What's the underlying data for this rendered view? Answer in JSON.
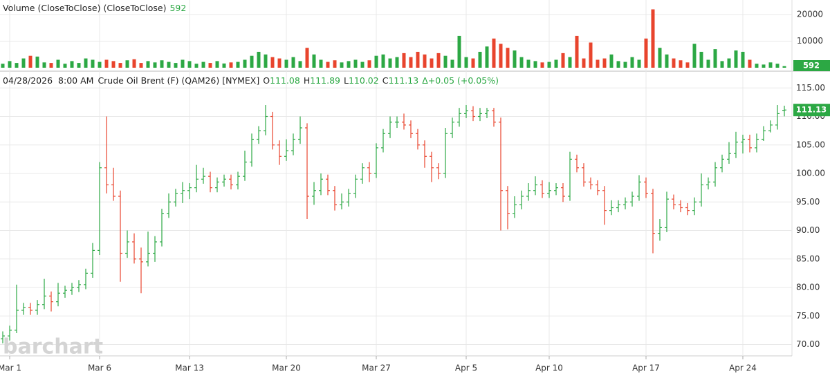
{
  "chart_data": [
    {
      "type": "bar",
      "title": "Volume (CloseToClose)  (CloseToClose)",
      "ylim": [
        0,
        25000
      ],
      "yticks": [
        10000,
        20000
      ],
      "values": [
        1500,
        2500,
        1800,
        3500,
        4500,
        4200,
        2000,
        1800,
        3000,
        1500,
        2500,
        1800,
        3500,
        3000,
        2200,
        3000,
        2500,
        1800,
        2800,
        3200,
        1800,
        2500,
        2000,
        2800,
        2200,
        1800,
        3000,
        2500,
        1500,
        2200,
        1800,
        2500,
        1600,
        2000,
        2200,
        3000,
        4500,
        6000,
        5000,
        4000,
        3500,
        3000,
        4000,
        2500,
        7500,
        5000,
        3000,
        2200,
        2800,
        2000,
        2500,
        3000,
        2200,
        2800,
        4500,
        5000,
        3500,
        4000,
        5500,
        4000,
        6000,
        5000,
        3500,
        5500,
        4500,
        3000,
        12000,
        4000,
        3500,
        6000,
        8000,
        11000,
        9000,
        7500,
        6500,
        4000,
        3000,
        2500,
        2000,
        2200,
        3000,
        5500,
        4000,
        12000,
        3500,
        9500,
        3000,
        3500,
        5000,
        2500,
        2200,
        4000,
        3000,
        11000,
        22000,
        7500,
        5000,
        3500,
        2800,
        2000,
        9000,
        6000,
        3000,
        7000,
        2500,
        3500,
        6500,
        6000,
        3000,
        1500,
        1200,
        2000,
        1500,
        592
      ]
    },
    {
      "type": "ohlc",
      "title": {
        "date": "04/28/2026",
        "time": "8:00 AM",
        "symbol": "Crude Oil Brent (F) (QAM26) [NYMEX]",
        "o": "O",
        "h": "H",
        "l": "L",
        "c": "C",
        "change": "Δ+0.05 (+0.05%)"
      },
      "watermark": "barchart",
      "up_color": "#2ca844",
      "down_color": "#e8442d",
      "ylim": [
        68,
        117.7
      ],
      "yticks": [
        {
          "value": 70,
          "label": "70.00"
        },
        {
          "value": 75,
          "label": "75.00"
        },
        {
          "value": 80,
          "label": "80.00"
        },
        {
          "value": 85,
          "label": "85.00"
        },
        {
          "value": 90,
          "label": "90.00"
        },
        {
          "value": 95,
          "label": "95.00"
        },
        {
          "value": 100,
          "label": "100.00"
        },
        {
          "value": 105,
          "label": "105.00"
        },
        {
          "value": 110,
          "label": "110.00"
        },
        {
          "value": 115,
          "label": "115.00"
        }
      ],
      "grid": true,
      "categories": [
        null,
        "Mar 1",
        null,
        null,
        null,
        null,
        null,
        null,
        null,
        null,
        null,
        null,
        null,
        null,
        "Mar 6",
        null,
        null,
        null,
        null,
        null,
        null,
        null,
        null,
        null,
        null,
        null,
        null,
        "Mar 13",
        null,
        null,
        null,
        null,
        null,
        null,
        null,
        null,
        null,
        null,
        null,
        null,
        null,
        "Mar 20",
        null,
        null,
        null,
        null,
        null,
        null,
        null,
        null,
        null,
        null,
        null,
        null,
        "Mar 27",
        null,
        null,
        null,
        null,
        null,
        null,
        null,
        null,
        null,
        null,
        null,
        null,
        "Apr 5",
        null,
        null,
        null,
        null,
        null,
        null,
        null,
        null,
        null,
        null,
        null,
        "Apr 10",
        null,
        null,
        null,
        null,
        null,
        null,
        null,
        null,
        null,
        null,
        null,
        null,
        null,
        "Apr 17",
        null,
        null,
        null,
        null,
        null,
        null,
        null,
        null,
        null,
        null,
        null,
        null,
        null,
        "Apr 24",
        null,
        null,
        null,
        null,
        null,
        null
      ],
      "open": [
        71,
        71.5,
        72.5,
        76,
        76.5,
        76,
        77,
        78.5,
        77.5,
        79,
        79.5,
        80,
        80.5,
        82.5,
        86.5,
        101,
        98,
        96,
        86,
        88,
        85,
        84.5,
        86,
        88,
        93,
        95,
        96.5,
        97,
        97.5,
        99,
        99.5,
        97.5,
        98.5,
        99,
        98,
        99.5,
        102,
        106,
        107.5,
        110,
        105,
        103,
        104,
        106,
        108,
        96,
        97,
        99,
        97,
        94.5,
        95,
        96.5,
        99,
        101,
        100,
        104.5,
        107,
        109,
        109,
        108.5,
        107,
        105,
        103,
        101,
        100,
        107,
        109,
        110.5,
        111,
        110,
        110.5,
        111,
        109,
        97,
        93,
        94.5,
        96,
        97,
        98,
        96.5,
        97,
        97.5,
        96,
        102.5,
        101,
        98.5,
        98,
        97,
        93.5,
        94,
        94.5,
        95,
        96,
        98.5,
        96.5,
        89.5,
        90.5,
        95.5,
        94.5,
        94,
        93.5,
        95,
        98,
        98.5,
        101,
        102.5,
        103.5,
        105.5,
        106,
        104.5,
        106,
        107.5,
        108.5,
        111.08
      ],
      "high": [
        72.3,
        73.3,
        80.5,
        77.3,
        77.3,
        77.8,
        81.5,
        79.3,
        80.8,
        80.3,
        80.8,
        81.3,
        83.3,
        87.8,
        102,
        110,
        101,
        97,
        90,
        89.5,
        87,
        89.8,
        89,
        93.8,
        96.5,
        97.3,
        98.5,
        98.3,
        101.5,
        101,
        100.3,
        99.3,
        99.8,
        99.8,
        100.3,
        104,
        107,
        108.3,
        112,
        110.8,
        105.8,
        106,
        107,
        110,
        108.8,
        98.5,
        100,
        99.8,
        97.8,
        96.5,
        97.3,
        99.8,
        101.8,
        102,
        105.3,
        107.8,
        110,
        110,
        110.5,
        109.3,
        107.8,
        105.8,
        103.8,
        101.8,
        108,
        109.8,
        111.5,
        112,
        111.8,
        111.5,
        111.5,
        111.5,
        109.8,
        97.8,
        96,
        97,
        98.3,
        99.5,
        98.8,
        98.5,
        98.3,
        98.3,
        103.8,
        103.3,
        101.8,
        99.3,
        98.8,
        97.8,
        95.3,
        95.3,
        95.8,
        96.8,
        99.7,
        99.3,
        97.3,
        92,
        96.8,
        96.3,
        95.3,
        94.8,
        95.8,
        100,
        99.3,
        102,
        103.3,
        105.5,
        107.3,
        106.8,
        106.8,
        107,
        108.3,
        109.3,
        112,
        111.89
      ],
      "low": [
        70.2,
        70.7,
        72,
        75.2,
        75.2,
        75.2,
        76.2,
        75.8,
        76.7,
        78.2,
        78.7,
        79.2,
        79.7,
        81.7,
        85.7,
        96.5,
        95.2,
        81,
        85.2,
        84.2,
        79,
        83.7,
        84.5,
        87.2,
        92.2,
        94.2,
        94.8,
        95.5,
        96.7,
        98.2,
        96.7,
        96.7,
        97.7,
        97.2,
        97.2,
        98.7,
        101.2,
        105.2,
        106.7,
        104.2,
        101.5,
        102.2,
        103.2,
        105.2,
        92,
        94.5,
        96.2,
        96.2,
        93.5,
        93.7,
        94.2,
        95.7,
        98.2,
        98.5,
        99.2,
        103.7,
        106.2,
        108,
        107.7,
        106.2,
        104.2,
        101,
        98.5,
        99,
        99.2,
        106.2,
        108.2,
        109.7,
        109.2,
        109.2,
        109.7,
        108.2,
        90,
        90.2,
        92.2,
        93.7,
        95.2,
        96.2,
        95.7,
        95.7,
        96.2,
        95,
        95.2,
        100.2,
        97.7,
        97.2,
        96.2,
        91,
        92.7,
        93.2,
        93.7,
        94.2,
        95.2,
        95.7,
        86,
        88.2,
        89.7,
        93.7,
        93.2,
        92.7,
        92.7,
        94.2,
        97.2,
        97.7,
        100.2,
        101.7,
        102.7,
        103.5,
        103.7,
        103.7,
        105.7,
        107.2,
        107.7,
        110.02
      ],
      "close": [
        71.5,
        72.5,
        76,
        76.5,
        76,
        77,
        78.5,
        77.5,
        79,
        79.5,
        80,
        80.5,
        82.5,
        86.5,
        101,
        98,
        96,
        86,
        88,
        85,
        84.5,
        86,
        88,
        93,
        95,
        96.5,
        97,
        97.5,
        99,
        99.5,
        97.5,
        98.5,
        99,
        98,
        99.5,
        102,
        106,
        107.5,
        110,
        105,
        103,
        104,
        106,
        108,
        96,
        97,
        99,
        97,
        94.5,
        95,
        96.5,
        99,
        101,
        100,
        104.5,
        107,
        109,
        109,
        108.5,
        107,
        105,
        103,
        101,
        100,
        107,
        109,
        110.5,
        111,
        110,
        110.5,
        111,
        109,
        97,
        93,
        94.5,
        96,
        97,
        98,
        96.5,
        97,
        97.5,
        96,
        102.5,
        101,
        98.5,
        98,
        97,
        93.5,
        94,
        94.5,
        95,
        96,
        98.5,
        96.5,
        89.5,
        90.5,
        95.5,
        94.5,
        94,
        93.5,
        95,
        98,
        98.5,
        101,
        102.5,
        103.5,
        105.5,
        106,
        104.5,
        106,
        107.5,
        108.5,
        110.5,
        111.13
      ]
    }
  ]
}
